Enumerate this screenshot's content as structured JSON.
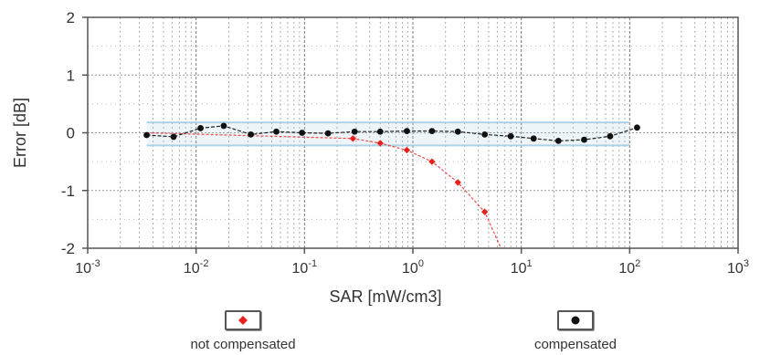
{
  "chart_data": {
    "type": "line",
    "xlabel": "SAR [mW/cm3]",
    "ylabel": "Error [dB]",
    "x_scale": "log",
    "xlim": [
      0.001,
      1000
    ],
    "ylim": [
      -2,
      2
    ],
    "x_ticks": [
      0.001,
      0.01,
      0.1,
      1,
      10,
      100,
      1000
    ],
    "x_tick_labels": [
      {
        "base": "10",
        "exp": "-3"
      },
      {
        "base": "10",
        "exp": "-2"
      },
      {
        "base": "10",
        "exp": "-1"
      },
      {
        "base": "10",
        "exp": "0"
      },
      {
        "base": "10",
        "exp": "1"
      },
      {
        "base": "10",
        "exp": "2"
      },
      {
        "base": "10",
        "exp": "3"
      }
    ],
    "y_ticks": [
      "2",
      "1",
      "0",
      "-1",
      "-2"
    ],
    "grid": true,
    "series": [
      {
        "name": "not compensated",
        "color": "#e8201c",
        "marker": "diamond",
        "x": [
          0.28,
          0.5,
          0.88,
          1.5,
          2.6,
          4.6,
          6.5
        ],
        "y": [
          -0.1,
          -0.18,
          -0.3,
          -0.5,
          -0.86,
          -1.37,
          -2.0
        ]
      },
      {
        "name": "compensated",
        "color": "#111111",
        "marker": "circle",
        "x": [
          0.0035,
          0.0062,
          0.011,
          0.018,
          0.032,
          0.055,
          0.095,
          0.165,
          0.29,
          0.5,
          0.88,
          1.5,
          2.6,
          4.6,
          8.0,
          13.0,
          22.0,
          38.0,
          66.0,
          117.0
        ],
        "y": [
          -0.04,
          -0.07,
          0.08,
          0.12,
          -0.03,
          0.02,
          0.0,
          -0.01,
          0.02,
          0.02,
          0.03,
          0.03,
          0.02,
          -0.03,
          -0.06,
          -0.1,
          -0.14,
          -0.12,
          -0.06,
          0.09
        ]
      }
    ],
    "uncertainty_band": {
      "x_start": 0.0035,
      "x_end": 100,
      "upper": 0.18,
      "lower": -0.22,
      "color": "#9fc9de"
    },
    "legend_placement": "bottom"
  }
}
